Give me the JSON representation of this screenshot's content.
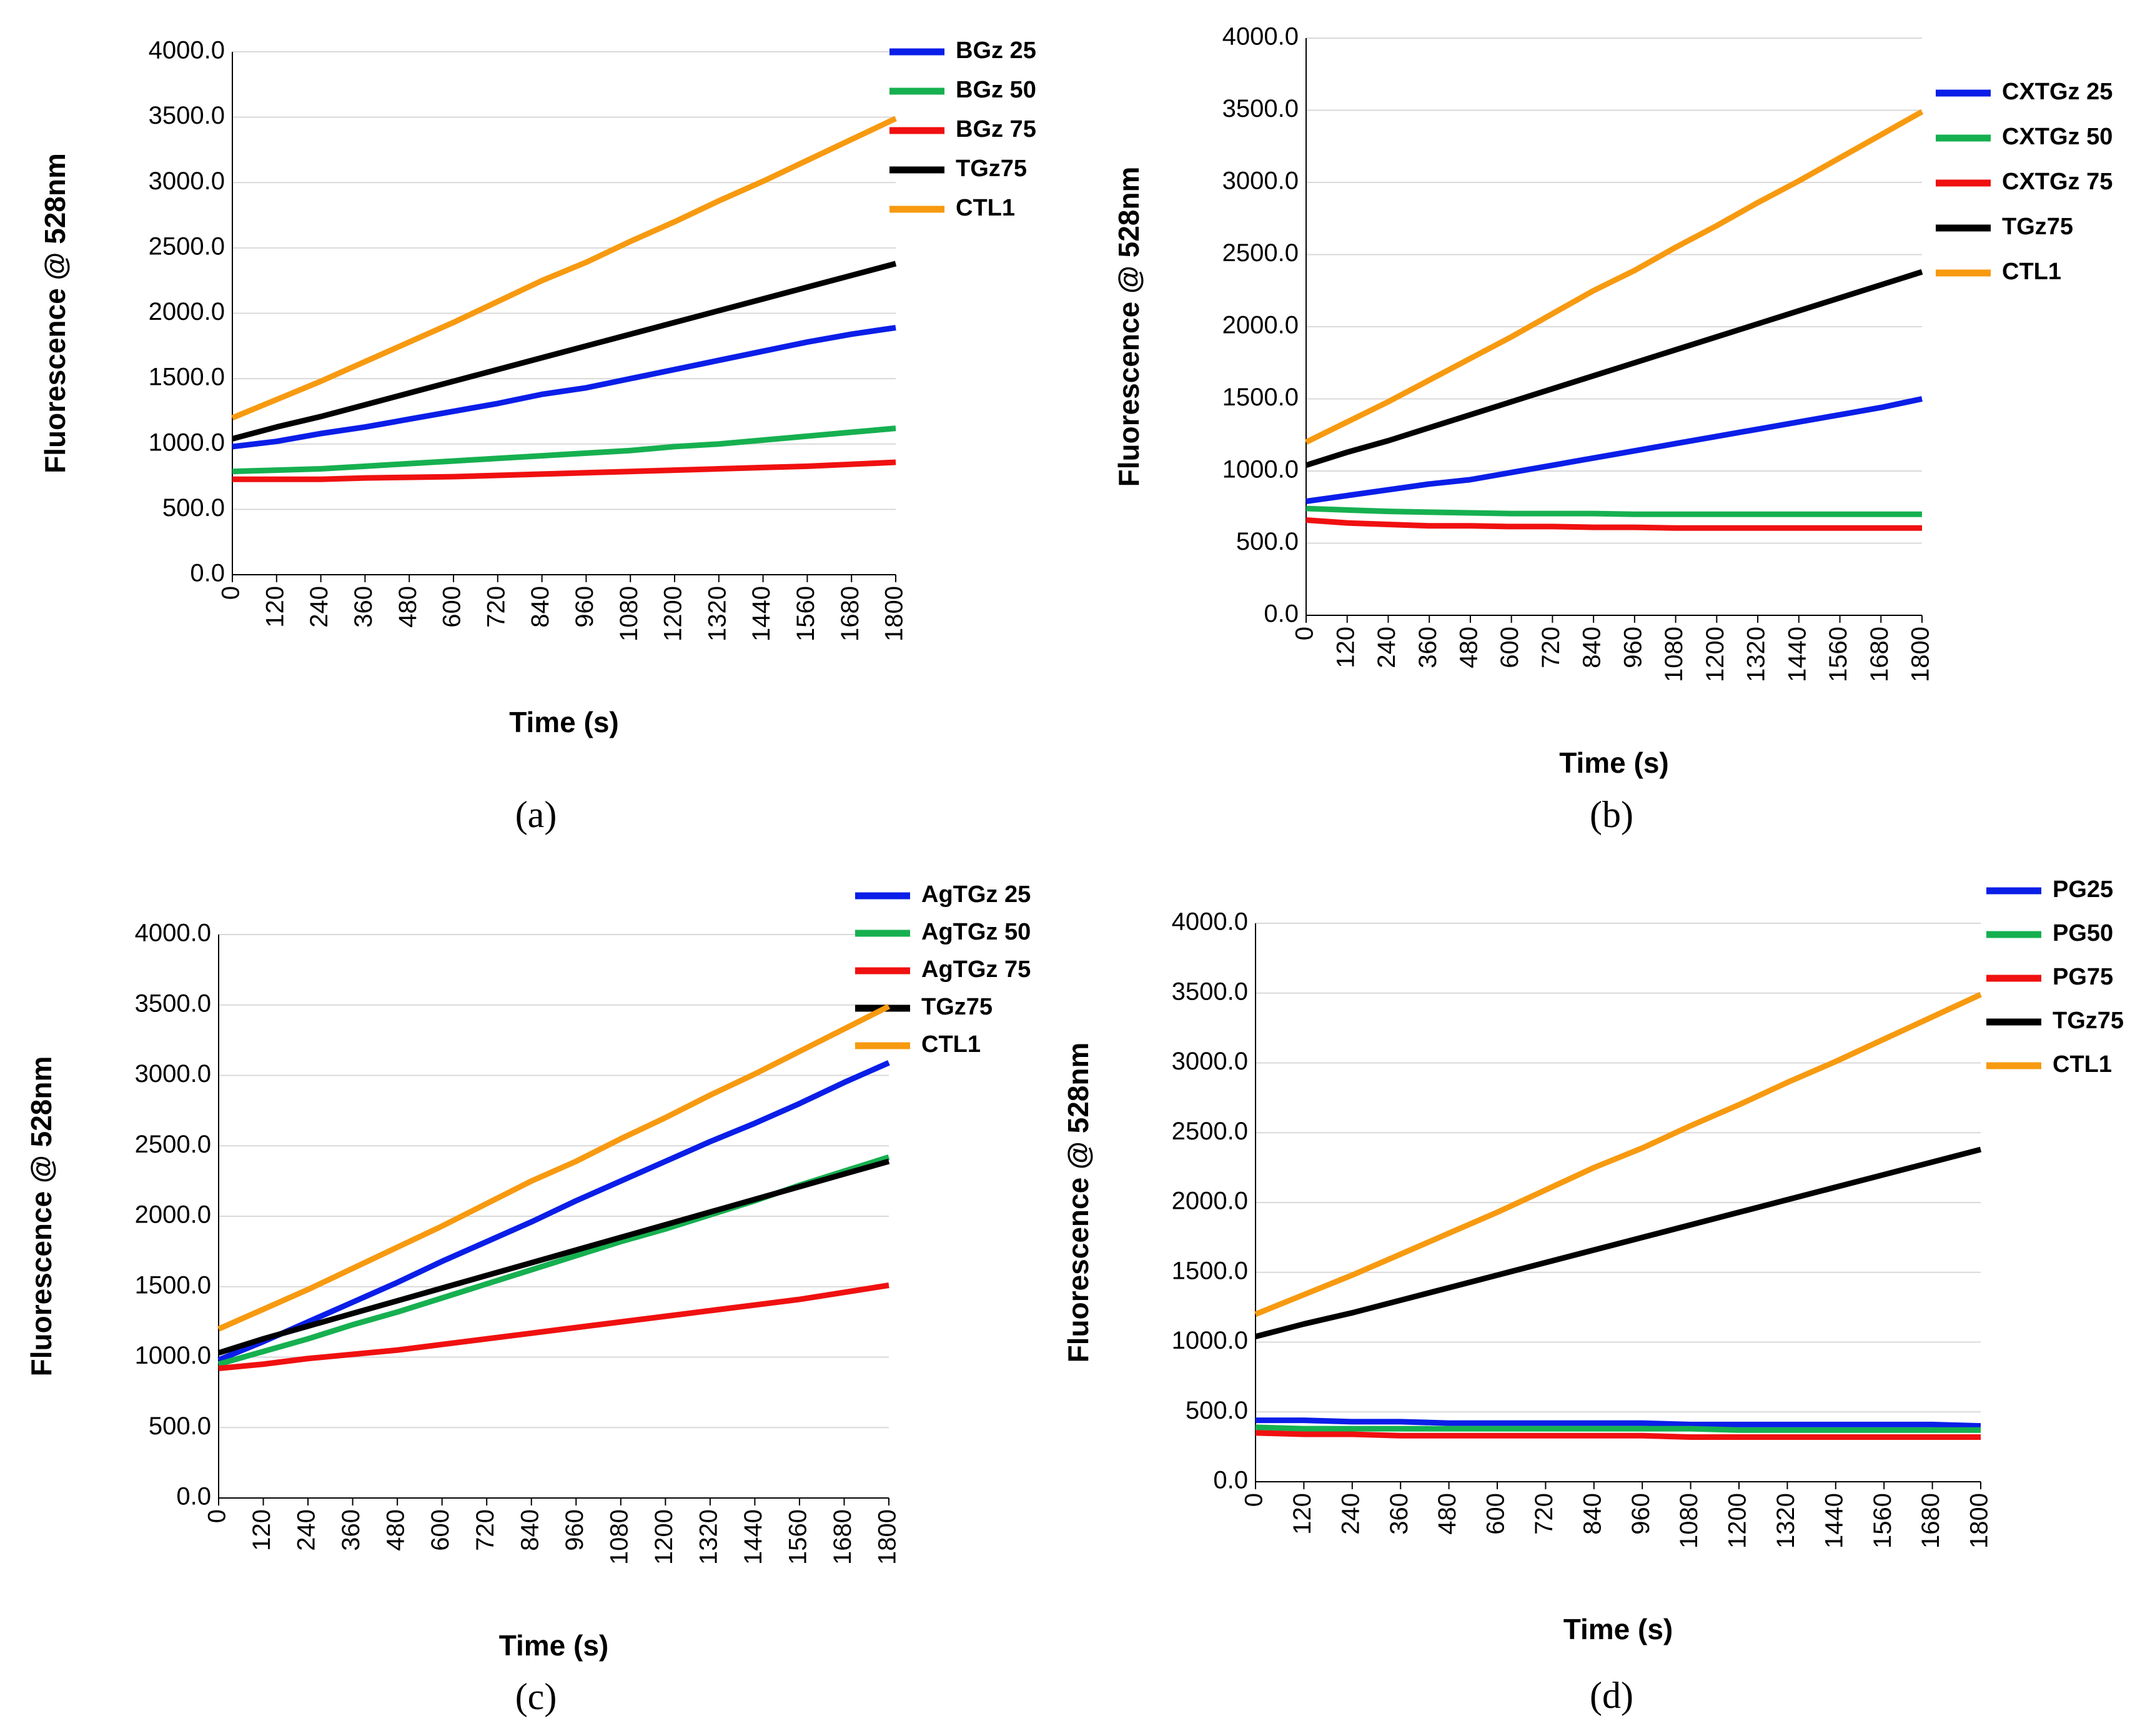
{
  "chart_data": [
    {
      "type": "line",
      "label": "(a)",
      "x_label": "Time (s)",
      "y_label": "Fluorescence @ 528nm",
      "x": [
        0,
        120,
        240,
        360,
        480,
        600,
        720,
        840,
        960,
        1080,
        1200,
        1320,
        1440,
        1560,
        1680,
        1800
      ],
      "xlim": [
        0,
        1800
      ],
      "xticks": [
        0,
        120,
        240,
        360,
        480,
        600,
        720,
        840,
        960,
        1080,
        1200,
        1320,
        1440,
        1560,
        1680,
        1800
      ],
      "ylim": [
        0,
        4000
      ],
      "yticks": [
        {
          "value": 0,
          "label": "0.0"
        },
        {
          "value": 500,
          "label": "500.0"
        },
        {
          "value": 1000,
          "label": "1000.0"
        },
        {
          "value": 1500,
          "label": "1500.0"
        },
        {
          "value": 2000,
          "label": "2000.0"
        },
        {
          "value": 2500,
          "label": "2500.0"
        },
        {
          "value": 3000,
          "label": "3000.0"
        },
        {
          "value": 3500,
          "label": "3500.0"
        },
        {
          "value": 4000,
          "label": "4000.0"
        }
      ],
      "grid": true,
      "legend": "right",
      "series": [
        {
          "name": "BGz 25",
          "color": "#0a1ee8",
          "values": [
            980,
            1020,
            1080,
            1130,
            1190,
            1250,
            1310,
            1380,
            1430,
            1500,
            1570,
            1640,
            1710,
            1780,
            1840,
            1890
          ]
        },
        {
          "name": "BGz 50",
          "color": "#16b050",
          "values": [
            790,
            800,
            810,
            830,
            850,
            870,
            890,
            910,
            930,
            950,
            980,
            1000,
            1030,
            1060,
            1090,
            1120
          ]
        },
        {
          "name": "BGz 75",
          "color": "#f01010",
          "values": [
            730,
            730,
            730,
            740,
            745,
            750,
            760,
            770,
            780,
            790,
            800,
            810,
            820,
            830,
            845,
            860
          ]
        },
        {
          "name": "TGz75",
          "color": "#000000",
          "values": [
            1040,
            1130,
            1210,
            1300,
            1390,
            1480,
            1570,
            1660,
            1750,
            1840,
            1930,
            2020,
            2110,
            2200,
            2290,
            2380
          ]
        },
        {
          "name": "CTL1",
          "color": "#f79a10",
          "values": [
            1200,
            1340,
            1480,
            1630,
            1780,
            1930,
            2090,
            2250,
            2390,
            2550,
            2700,
            2860,
            3010,
            3170,
            3330,
            3490
          ]
        }
      ]
    },
    {
      "type": "line",
      "label": "(b)",
      "x_label": "Time (s)",
      "y_label": "Fluorescence @ 528nm",
      "x": [
        0,
        120,
        240,
        360,
        480,
        600,
        720,
        840,
        960,
        1080,
        1200,
        1320,
        1440,
        1560,
        1680,
        1800
      ],
      "xlim": [
        0,
        1800
      ],
      "xticks": [
        0,
        120,
        240,
        360,
        480,
        600,
        720,
        840,
        960,
        1080,
        1200,
        1320,
        1440,
        1560,
        1680,
        1800
      ],
      "ylim": [
        0,
        4000
      ],
      "yticks": [
        {
          "value": 0,
          "label": "0.0"
        },
        {
          "value": 500,
          "label": "500.0"
        },
        {
          "value": 1000,
          "label": "1000.0"
        },
        {
          "value": 1500,
          "label": "1500.0"
        },
        {
          "value": 2000,
          "label": "2000.0"
        },
        {
          "value": 2500,
          "label": "2500.0"
        },
        {
          "value": 3000,
          "label": "3000.0"
        },
        {
          "value": 3500,
          "label": "3500.0"
        },
        {
          "value": 4000,
          "label": "4000.0"
        }
      ],
      "grid": true,
      "legend": "right",
      "series": [
        {
          "name": "CXTGz 25",
          "color": "#0a1ee8",
          "values": [
            790,
            830,
            870,
            910,
            940,
            990,
            1040,
            1090,
            1140,
            1190,
            1240,
            1290,
            1340,
            1390,
            1440,
            1500
          ]
        },
        {
          "name": "CXTGz 50",
          "color": "#16b050",
          "values": [
            740,
            730,
            720,
            715,
            710,
            705,
            705,
            705,
            700,
            700,
            700,
            700,
            700,
            700,
            700,
            700
          ]
        },
        {
          "name": "CXTGz 75",
          "color": "#f01010",
          "values": [
            660,
            640,
            630,
            620,
            620,
            615,
            615,
            610,
            610,
            605,
            605,
            605,
            605,
            605,
            605,
            605
          ]
        },
        {
          "name": "TGz75",
          "color": "#000000",
          "values": [
            1040,
            1130,
            1210,
            1300,
            1390,
            1480,
            1570,
            1660,
            1750,
            1840,
            1930,
            2020,
            2110,
            2200,
            2290,
            2380
          ]
        },
        {
          "name": "CTL1",
          "color": "#f79a10",
          "values": [
            1200,
            1340,
            1480,
            1630,
            1780,
            1930,
            2090,
            2250,
            2390,
            2550,
            2700,
            2860,
            3010,
            3170,
            3330,
            3490
          ]
        }
      ]
    },
    {
      "type": "line",
      "label": "(c)",
      "x_label": "Time (s)",
      "y_label": "Fluorescence @ 528nm",
      "x": [
        0,
        120,
        240,
        360,
        480,
        600,
        720,
        840,
        960,
        1080,
        1200,
        1320,
        1440,
        1560,
        1680,
        1800
      ],
      "xlim": [
        0,
        1800
      ],
      "xticks": [
        0,
        120,
        240,
        360,
        480,
        600,
        720,
        840,
        960,
        1080,
        1200,
        1320,
        1440,
        1560,
        1680,
        1800
      ],
      "ylim": [
        0,
        4000
      ],
      "yticks": [
        {
          "value": 0,
          "label": "0.0"
        },
        {
          "value": 500,
          "label": "500.0"
        },
        {
          "value": 1000,
          "label": "1000.0"
        },
        {
          "value": 1500,
          "label": "1500.0"
        },
        {
          "value": 2000,
          "label": "2000.0"
        },
        {
          "value": 2500,
          "label": "2500.0"
        },
        {
          "value": 3000,
          "label": "3000.0"
        },
        {
          "value": 3500,
          "label": "3500.0"
        },
        {
          "value": 4000,
          "label": "4000.0"
        }
      ],
      "grid": true,
      "legend": "right",
      "series": [
        {
          "name": "AgTGz 25",
          "color": "#0a1ee8",
          "values": [
            980,
            1110,
            1250,
            1390,
            1530,
            1680,
            1820,
            1960,
            2110,
            2250,
            2390,
            2530,
            2660,
            2800,
            2950,
            3090
          ]
        },
        {
          "name": "AgTGz 50",
          "color": "#16b050",
          "values": [
            950,
            1040,
            1130,
            1230,
            1320,
            1420,
            1520,
            1620,
            1720,
            1820,
            1910,
            2010,
            2110,
            2220,
            2320,
            2420
          ]
        },
        {
          "name": "AgTGz 75",
          "color": "#f01010",
          "values": [
            920,
            950,
            990,
            1020,
            1050,
            1090,
            1130,
            1170,
            1210,
            1250,
            1290,
            1330,
            1370,
            1410,
            1460,
            1510
          ]
        },
        {
          "name": "TGz75",
          "color": "#000000",
          "values": [
            1030,
            1130,
            1220,
            1310,
            1400,
            1490,
            1580,
            1670,
            1760,
            1850,
            1940,
            2030,
            2120,
            2210,
            2300,
            2390
          ]
        },
        {
          "name": "CTL1",
          "color": "#f79a10",
          "values": [
            1200,
            1340,
            1480,
            1630,
            1780,
            1930,
            2090,
            2250,
            2390,
            2550,
            2700,
            2860,
            3010,
            3170,
            3330,
            3490
          ]
        }
      ]
    },
    {
      "type": "line",
      "label": "(d)",
      "x_label": "Time (s)",
      "y_label": "Fluorescence @ 528nm",
      "x": [
        0,
        120,
        240,
        360,
        480,
        600,
        720,
        840,
        960,
        1080,
        1200,
        1320,
        1440,
        1560,
        1680,
        1800
      ],
      "xlim": [
        0,
        1800
      ],
      "xticks": [
        0,
        120,
        240,
        360,
        480,
        600,
        720,
        840,
        960,
        1080,
        1200,
        1320,
        1440,
        1560,
        1680,
        1800
      ],
      "ylim": [
        0,
        4000
      ],
      "yticks": [
        {
          "value": 0,
          "label": "0.0"
        },
        {
          "value": 500,
          "label": "500.0"
        },
        {
          "value": 1000,
          "label": "1000.0"
        },
        {
          "value": 1500,
          "label": "1500.0"
        },
        {
          "value": 2000,
          "label": "2000.0"
        },
        {
          "value": 2500,
          "label": "2500.0"
        },
        {
          "value": 3000,
          "label": "3000.0"
        },
        {
          "value": 3500,
          "label": "3500.0"
        },
        {
          "value": 4000,
          "label": "4000.0"
        }
      ],
      "grid": true,
      "legend": "right",
      "series": [
        {
          "name": "PG25",
          "color": "#0a1ee8",
          "values": [
            440,
            440,
            430,
            430,
            420,
            420,
            420,
            420,
            420,
            410,
            410,
            410,
            410,
            410,
            410,
            400
          ]
        },
        {
          "name": "PG50",
          "color": "#16b050",
          "values": [
            390,
            380,
            380,
            380,
            380,
            380,
            380,
            380,
            380,
            380,
            370,
            370,
            370,
            370,
            370,
            370
          ]
        },
        {
          "name": "PG75",
          "color": "#f01010",
          "values": [
            350,
            340,
            340,
            330,
            330,
            330,
            330,
            330,
            330,
            320,
            320,
            320,
            320,
            320,
            320,
            320
          ]
        },
        {
          "name": "TGz75",
          "color": "#000000",
          "values": [
            1040,
            1130,
            1210,
            1300,
            1390,
            1480,
            1570,
            1660,
            1750,
            1840,
            1930,
            2020,
            2110,
            2200,
            2290,
            2380
          ]
        },
        {
          "name": "CTL1",
          "color": "#f79a10",
          "values": [
            1200,
            1340,
            1480,
            1630,
            1780,
            1930,
            2090,
            2250,
            2390,
            2550,
            2700,
            2860,
            3010,
            3170,
            3330,
            3490
          ]
        }
      ]
    }
  ]
}
